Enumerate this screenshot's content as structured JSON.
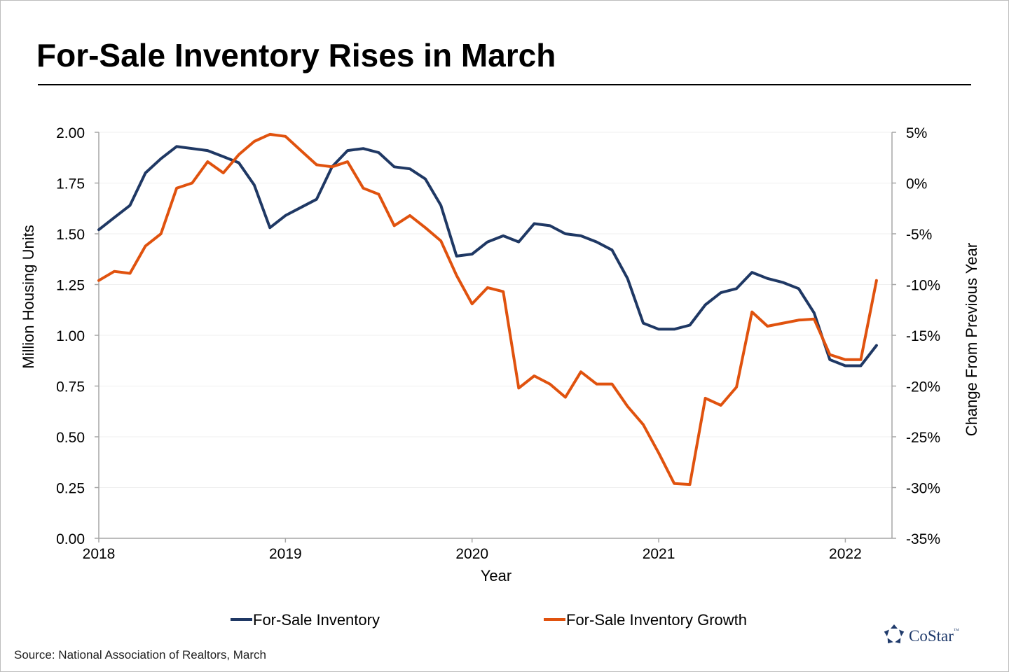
{
  "title": "For-Sale Inventory Rises in March",
  "source": "Source: National Association of Realtors, March",
  "logo": {
    "text": "CoStar",
    "tm": "™",
    "icon": "costar-star-logo",
    "color": "#1f3a6b"
  },
  "chart_data": {
    "type": "line",
    "title": "For-Sale Inventory Rises in March",
    "xlabel": "Year",
    "ylabel_left": "Million Housing Units",
    "ylabel_right": "Change From Previous Year",
    "x_ticks": [
      "2018",
      "2019",
      "2020",
      "2021",
      "2022"
    ],
    "x_range": [
      2018.0,
      2022.25
    ],
    "y_left_range": [
      0,
      2.0
    ],
    "y_left_ticks": [
      "0.00",
      "0.25",
      "0.50",
      "0.75",
      "1.00",
      "1.25",
      "1.50",
      "1.75",
      "2.00"
    ],
    "y_right_range": [
      -35,
      5
    ],
    "y_right_ticks": [
      "-35%",
      "-30%",
      "-25%",
      "-20%",
      "-15%",
      "-10%",
      "-5%",
      "0%",
      "5%"
    ],
    "grid": "horizontal",
    "legend_position": "bottom",
    "x": [
      2018.0,
      2018.083,
      2018.167,
      2018.25,
      2018.333,
      2018.417,
      2018.5,
      2018.583,
      2018.667,
      2018.75,
      2018.833,
      2018.917,
      2019.0,
      2019.083,
      2019.167,
      2019.25,
      2019.333,
      2019.417,
      2019.5,
      2019.583,
      2019.667,
      2019.75,
      2019.833,
      2019.917,
      2020.0,
      2020.083,
      2020.167,
      2020.25,
      2020.333,
      2020.417,
      2020.5,
      2020.583,
      2020.667,
      2020.75,
      2020.833,
      2020.917,
      2021.0,
      2021.083,
      2021.167,
      2021.25,
      2021.333,
      2021.417,
      2021.5,
      2021.583,
      2021.667,
      2021.75,
      2021.833,
      2021.917,
      2022.0,
      2022.083,
      2022.167
    ],
    "series": [
      {
        "name": "For-Sale Inventory",
        "axis": "left",
        "color": "#1f3864",
        "values": [
          1.52,
          1.58,
          1.64,
          1.8,
          1.87,
          1.93,
          1.92,
          1.91,
          1.88,
          1.85,
          1.74,
          1.53,
          1.59,
          1.63,
          1.67,
          1.83,
          1.91,
          1.92,
          1.9,
          1.83,
          1.82,
          1.77,
          1.64,
          1.39,
          1.4,
          1.46,
          1.49,
          1.46,
          1.55,
          1.54,
          1.5,
          1.49,
          1.46,
          1.42,
          1.28,
          1.06,
          1.03,
          1.03,
          1.05,
          1.15,
          1.21,
          1.23,
          1.31,
          1.28,
          1.26,
          1.23,
          1.11,
          0.88,
          0.85,
          0.85,
          0.95
        ]
      },
      {
        "name": "For-Sale Inventory Growth",
        "axis": "right",
        "color": "#e0520e",
        "values": [
          -9.6,
          -8.7,
          -8.9,
          -6.2,
          -5.0,
          -0.5,
          0.0,
          2.1,
          1.0,
          2.8,
          4.1,
          4.8,
          4.6,
          3.2,
          1.8,
          1.6,
          2.1,
          -0.5,
          -1.1,
          -4.2,
          -3.2,
          -4.4,
          -5.7,
          -9.1,
          -11.9,
          -10.3,
          -10.7,
          -20.2,
          -19.0,
          -19.8,
          -21.1,
          -18.6,
          -19.8,
          -19.8,
          -22.0,
          -23.8,
          -26.6,
          -29.6,
          -29.7,
          -21.2,
          -21.9,
          -20.1,
          -12.7,
          -14.1,
          -13.8,
          -13.5,
          -13.4,
          -16.9,
          -17.4,
          -17.4,
          -9.6
        ]
      }
    ]
  }
}
